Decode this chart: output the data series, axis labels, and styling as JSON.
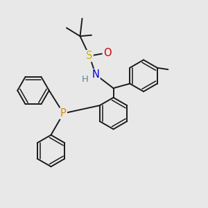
{
  "bg_color": "#e8e8e8",
  "bond_color": "#1a1a1a",
  "bond_width": 1.4,
  "atom_colors": {
    "S": "#c8b400",
    "O": "#cc0000",
    "N": "#0000dd",
    "P": "#dd8800",
    "H": "#558899",
    "C": "#1a1a1a"
  },
  "font_size": 10.5,
  "ring_r": 0.076
}
